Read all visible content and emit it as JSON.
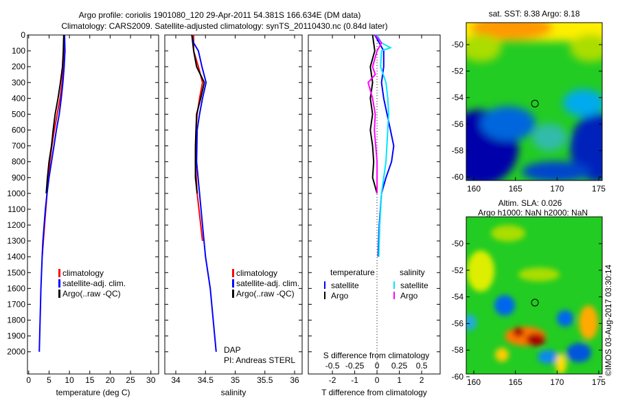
{
  "title": {
    "line1": "Argo profile: coriolis 1901080_120 29-Apr-2011 54.381S 166.634E (DM data)",
    "line2": "Climatology: CARS2009. Satellite-adjusted climatology: synTS_20110430.nc (0.84d later)"
  },
  "colors": {
    "climatology": "#ff0000",
    "satellite": "#0000ff",
    "argo": "#000000",
    "sal_satellite": "#00e5ff",
    "sal_argo": "#ff00ff"
  },
  "chart_data": [
    {
      "type": "line",
      "xlabel": "temperature (deg C)",
      "xlim": [
        -0.3,
        31.9
      ],
      "xticks": [
        "0",
        "5",
        "10",
        "15",
        "20",
        "25",
        "30"
      ],
      "xtick_values": [
        0,
        5,
        10,
        15,
        20,
        25,
        30
      ],
      "ylim": [
        0,
        2140
      ],
      "yticks": [
        "0",
        "100",
        "200",
        "300",
        "400",
        "500",
        "600",
        "700",
        "800",
        "900",
        "1000",
        "1100",
        "1200",
        "1300",
        "1400",
        "1500",
        "1600",
        "1700",
        "1800",
        "1900",
        "2000"
      ],
      "legend": [
        "climatology",
        "satellite-adj. clim.",
        "Argo(..raw -QC)"
      ],
      "series": [
        {
          "name": "climatology",
          "color": "#ff0000",
          "points": [
            [
              80,
              8.7
            ],
            [
              200,
              8.5
            ],
            [
              300,
              8.2
            ],
            [
              400,
              7.7
            ],
            [
              500,
              7.0
            ],
            [
              600,
              6.3
            ],
            [
              700,
              5.7
            ],
            [
              800,
              5.2
            ],
            [
              900,
              4.9
            ],
            [
              1000,
              4.5
            ],
            [
              1200,
              3.9
            ],
            [
              1400,
              3.3
            ]
          ]
        },
        {
          "name": "satellite-adj. clim.",
          "color": "#0000ff",
          "points": [
            [
              0,
              8.8
            ],
            [
              100,
              8.9
            ],
            [
              200,
              8.7
            ],
            [
              300,
              8.4
            ],
            [
              400,
              8.0
            ],
            [
              500,
              7.5
            ],
            [
              600,
              6.8
            ],
            [
              700,
              6.2
            ],
            [
              800,
              5.6
            ],
            [
              900,
              5.0
            ],
            [
              1000,
              4.5
            ],
            [
              1100,
              4.1
            ],
            [
              1200,
              3.8
            ],
            [
              1300,
              3.5
            ],
            [
              1400,
              3.3
            ],
            [
              1600,
              3.0
            ],
            [
              1800,
              2.8
            ],
            [
              2000,
              2.6
            ]
          ]
        },
        {
          "name": "Argo(..raw -QC)",
          "color": "#000000",
          "points": [
            [
              0,
              8.6
            ],
            [
              100,
              8.5
            ],
            [
              200,
              8.3
            ],
            [
              300,
              7.8
            ],
            [
              400,
              7.2
            ],
            [
              500,
              6.5
            ],
            [
              600,
              6.0
            ],
            [
              700,
              5.6
            ],
            [
              800,
              5.0
            ],
            [
              900,
              4.6
            ],
            [
              1000,
              4.3
            ]
          ]
        }
      ]
    },
    {
      "type": "line",
      "xlabel": "salinity",
      "xlim": [
        33.815,
        36.127
      ],
      "xticks": [
        "34",
        "34.5",
        "35",
        "35.5",
        "36"
      ],
      "xtick_values": [
        34,
        34.5,
        35,
        35.5,
        36
      ],
      "ylim": [
        0,
        2140
      ],
      "legend": [
        "climatology",
        "satellite-adj. clim.",
        "Argo(..raw -QC)"
      ],
      "annotation": [
        "DAP",
        "PI: Andreas STERL"
      ],
      "series": [
        {
          "name": "climatology",
          "color": "#ff0000",
          "points": [
            [
              0,
              34.3
            ],
            [
              100,
              34.3
            ],
            [
              200,
              34.38
            ],
            [
              300,
              34.45
            ],
            [
              400,
              34.4
            ],
            [
              500,
              34.36
            ],
            [
              600,
              34.34
            ],
            [
              800,
              34.33
            ],
            [
              1000,
              34.36
            ],
            [
              1200,
              34.42
            ],
            [
              1300,
              34.45
            ]
          ]
        },
        {
          "name": "satellite-adj. clim.",
          "color": "#0000ff",
          "points": [
            [
              0,
              34.27
            ],
            [
              50,
              34.3
            ],
            [
              100,
              34.38
            ],
            [
              200,
              34.44
            ],
            [
              300,
              34.51
            ],
            [
              400,
              34.45
            ],
            [
              500,
              34.4
            ],
            [
              600,
              34.36
            ],
            [
              800,
              34.35
            ],
            [
              1000,
              34.4
            ],
            [
              1200,
              34.45
            ],
            [
              1400,
              34.5
            ],
            [
              1600,
              34.58
            ],
            [
              1800,
              34.63
            ],
            [
              2000,
              34.68
            ]
          ]
        },
        {
          "name": "Argo(..raw -QC)",
          "color": "#000000",
          "points": [
            [
              0,
              34.27
            ],
            [
              100,
              34.3
            ],
            [
              200,
              34.35
            ],
            [
              300,
              34.48
            ],
            [
              400,
              34.42
            ],
            [
              500,
              34.35
            ],
            [
              700,
              34.33
            ],
            [
              900,
              34.33
            ],
            [
              1000,
              34.36
            ]
          ]
        }
      ]
    },
    {
      "type": "line",
      "xlabel": "T difference from climatology",
      "xlabel2": "S difference from climatology",
      "xlim": [
        -3.08,
        2.83
      ],
      "xticks": [
        "-2",
        "-1",
        "0",
        "1",
        "2"
      ],
      "xtick_values": [
        -2,
        -1,
        0,
        1,
        2
      ],
      "s_xticks": [
        "-0.5",
        "-0.25",
        "0",
        "0.25",
        "0.5"
      ],
      "s_xtick_values": [
        -0.5,
        -0.25,
        0,
        0.25,
        0.5
      ],
      "ylim": [
        0,
        2140
      ],
      "legend": {
        "temperature_title": "temperature",
        "salinity_title": "salinity",
        "satellite": "satellite",
        "argo": "Argo"
      },
      "series": [
        {
          "name": "temperature satellite",
          "color": "#0000ff",
          "unit": "T",
          "points": [
            [
              0,
              -0.1
            ],
            [
              100,
              0.3
            ],
            [
              200,
              0.3
            ],
            [
              300,
              0.2
            ],
            [
              400,
              0.3
            ],
            [
              500,
              0.45
            ],
            [
              600,
              0.6
            ],
            [
              700,
              0.75
            ],
            [
              800,
              0.65
            ],
            [
              900,
              0.4
            ],
            [
              1000,
              0.2
            ],
            [
              1200,
              0.1
            ],
            [
              1400,
              0.05
            ]
          ]
        },
        {
          "name": "temperature Argo",
          "color": "#000000",
          "unit": "T",
          "points": [
            [
              0,
              -0.2
            ],
            [
              100,
              -0.1
            ],
            [
              200,
              -0.3
            ],
            [
              300,
              -0.2
            ],
            [
              400,
              -0.3
            ],
            [
              500,
              -0.2
            ],
            [
              600,
              -0.3
            ],
            [
              700,
              -0.2
            ],
            [
              800,
              -0.15
            ],
            [
              900,
              -0.2
            ],
            [
              1000,
              0
            ]
          ]
        },
        {
          "name": "salinity satellite",
          "color": "#00e5ff",
          "unit": "S",
          "points": [
            [
              0,
              0
            ],
            [
              50,
              0.05
            ],
            [
              80,
              0.15
            ],
            [
              100,
              0.05
            ],
            [
              200,
              0.04
            ],
            [
              300,
              0.1
            ],
            [
              400,
              0.12
            ],
            [
              500,
              0.13
            ],
            [
              600,
              0.12
            ],
            [
              800,
              0.1
            ],
            [
              1000,
              0.05
            ],
            [
              1200,
              0.03
            ],
            [
              1400,
              0.02
            ]
          ]
        },
        {
          "name": "salinity Argo",
          "color": "#ff00ff",
          "unit": "S",
          "points": [
            [
              0,
              -0.02
            ],
            [
              50,
              0.05
            ],
            [
              100,
              0.0
            ],
            [
              200,
              -0.05
            ],
            [
              250,
              -0.02
            ],
            [
              300,
              -0.1
            ],
            [
              400,
              -0.05
            ],
            [
              500,
              -0.02
            ],
            [
              600,
              -0.03
            ],
            [
              800,
              0.0
            ],
            [
              1000,
              0.0
            ]
          ]
        }
      ]
    }
  ],
  "maps": {
    "sst": {
      "title": "sat. SST: 8.38 Argo: 8.18",
      "lat_ticks": [
        "-50",
        "-52",
        "-54",
        "-56",
        "-58",
        "-60"
      ],
      "lon_ticks": [
        "160",
        "165",
        "170",
        "175"
      ]
    },
    "sla": {
      "title1": "Altim. SLA: 0.026",
      "title2": "Argo h1000: NaN h2000: NaN",
      "lat_ticks": [
        "-50",
        "-52",
        "-54",
        "-56",
        "-58",
        "-60"
      ],
      "lon_ticks": [
        "160",
        "165",
        "170",
        "175"
      ]
    },
    "float_position": [
      166.634,
      -54.381
    ]
  },
  "credit": "©IMOS 03-Aug-2017 03:30:14"
}
